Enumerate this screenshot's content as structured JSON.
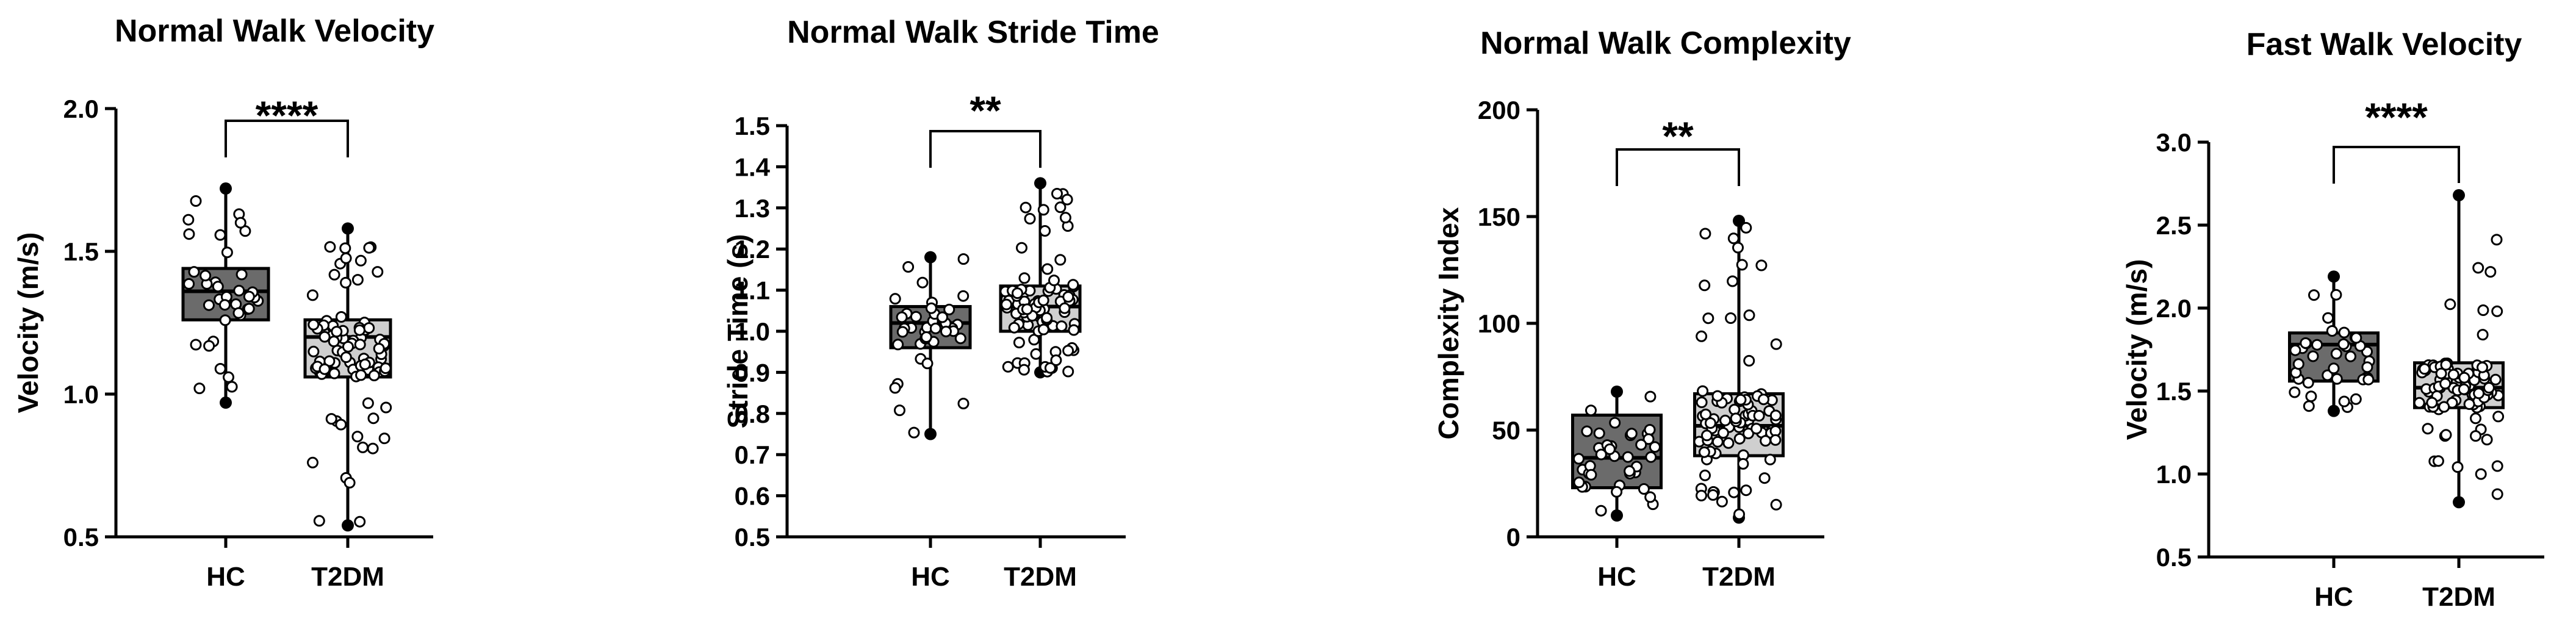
{
  "chart_data": [
    {
      "type": "box",
      "title": "Normal Walk Velocity",
      "ylabel": "Velocity (m/s)",
      "ylim": [
        0.5,
        2.0
      ],
      "yticks": [
        "0.5",
        "1.0",
        "1.5",
        "2.0"
      ],
      "categories": [
        "HC",
        "T2DM"
      ],
      "significance": "****",
      "boxes": [
        {
          "name": "HC",
          "min": 0.97,
          "q1": 1.26,
          "median": 1.36,
          "q3": 1.44,
          "max": 1.72,
          "fill": "#6b6b6b"
        },
        {
          "name": "T2DM",
          "min": 0.54,
          "q1": 1.06,
          "median": 1.2,
          "q3": 1.26,
          "max": 1.58,
          "fill": "#cfcfcf"
        }
      ]
    },
    {
      "type": "box",
      "title": "Normal Walk Stride Time",
      "ylabel": "Stride Time (s)",
      "ylim": [
        0.5,
        1.5
      ],
      "yticks": [
        "0.5",
        "0.6",
        "0.7",
        "0.8",
        "0.9",
        "1.0",
        "1.1",
        "1.2",
        "1.3",
        "1.4",
        "1.5"
      ],
      "categories": [
        "HC",
        "T2DM"
      ],
      "significance": "**",
      "boxes": [
        {
          "name": "HC",
          "min": 0.75,
          "q1": 0.96,
          "median": 1.02,
          "q3": 1.06,
          "max": 1.18,
          "fill": "#6b6b6b"
        },
        {
          "name": "T2DM",
          "min": 0.9,
          "q1": 1.0,
          "median": 1.06,
          "q3": 1.11,
          "max": 1.36,
          "fill": "#cfcfcf"
        }
      ]
    },
    {
      "type": "box",
      "title": "Normal Walk Complexity",
      "ylabel": "Complexity Index",
      "ylim": [
        0,
        200
      ],
      "yticks": [
        "0",
        "50",
        "100",
        "150",
        "200"
      ],
      "categories": [
        "HC",
        "T2DM"
      ],
      "significance": "**",
      "boxes": [
        {
          "name": "HC",
          "min": 10,
          "q1": 23,
          "median": 37,
          "q3": 57,
          "max": 68,
          "fill": "#6b6b6b"
        },
        {
          "name": "T2DM",
          "min": 9,
          "q1": 38,
          "median": 52,
          "q3": 67,
          "max": 148,
          "fill": "#cfcfcf"
        }
      ]
    },
    {
      "type": "box",
      "title": "Fast Walk Velocity",
      "ylabel": "Velocity (m/s)",
      "ylim": [
        0.5,
        3.0
      ],
      "yticks": [
        "0.5",
        "1.0",
        "1.5",
        "2.0",
        "2.5",
        "3.0"
      ],
      "categories": [
        "HC",
        "T2DM"
      ],
      "significance": "****",
      "boxes": [
        {
          "name": "HC",
          "min": 1.38,
          "q1": 1.56,
          "median": 1.78,
          "q3": 1.85,
          "max": 2.19,
          "fill": "#6b6b6b"
        },
        {
          "name": "T2DM",
          "min": 0.83,
          "q1": 1.4,
          "median": 1.52,
          "q3": 1.67,
          "max": 2.68,
          "fill": "#cfcfcf"
        }
      ]
    }
  ]
}
